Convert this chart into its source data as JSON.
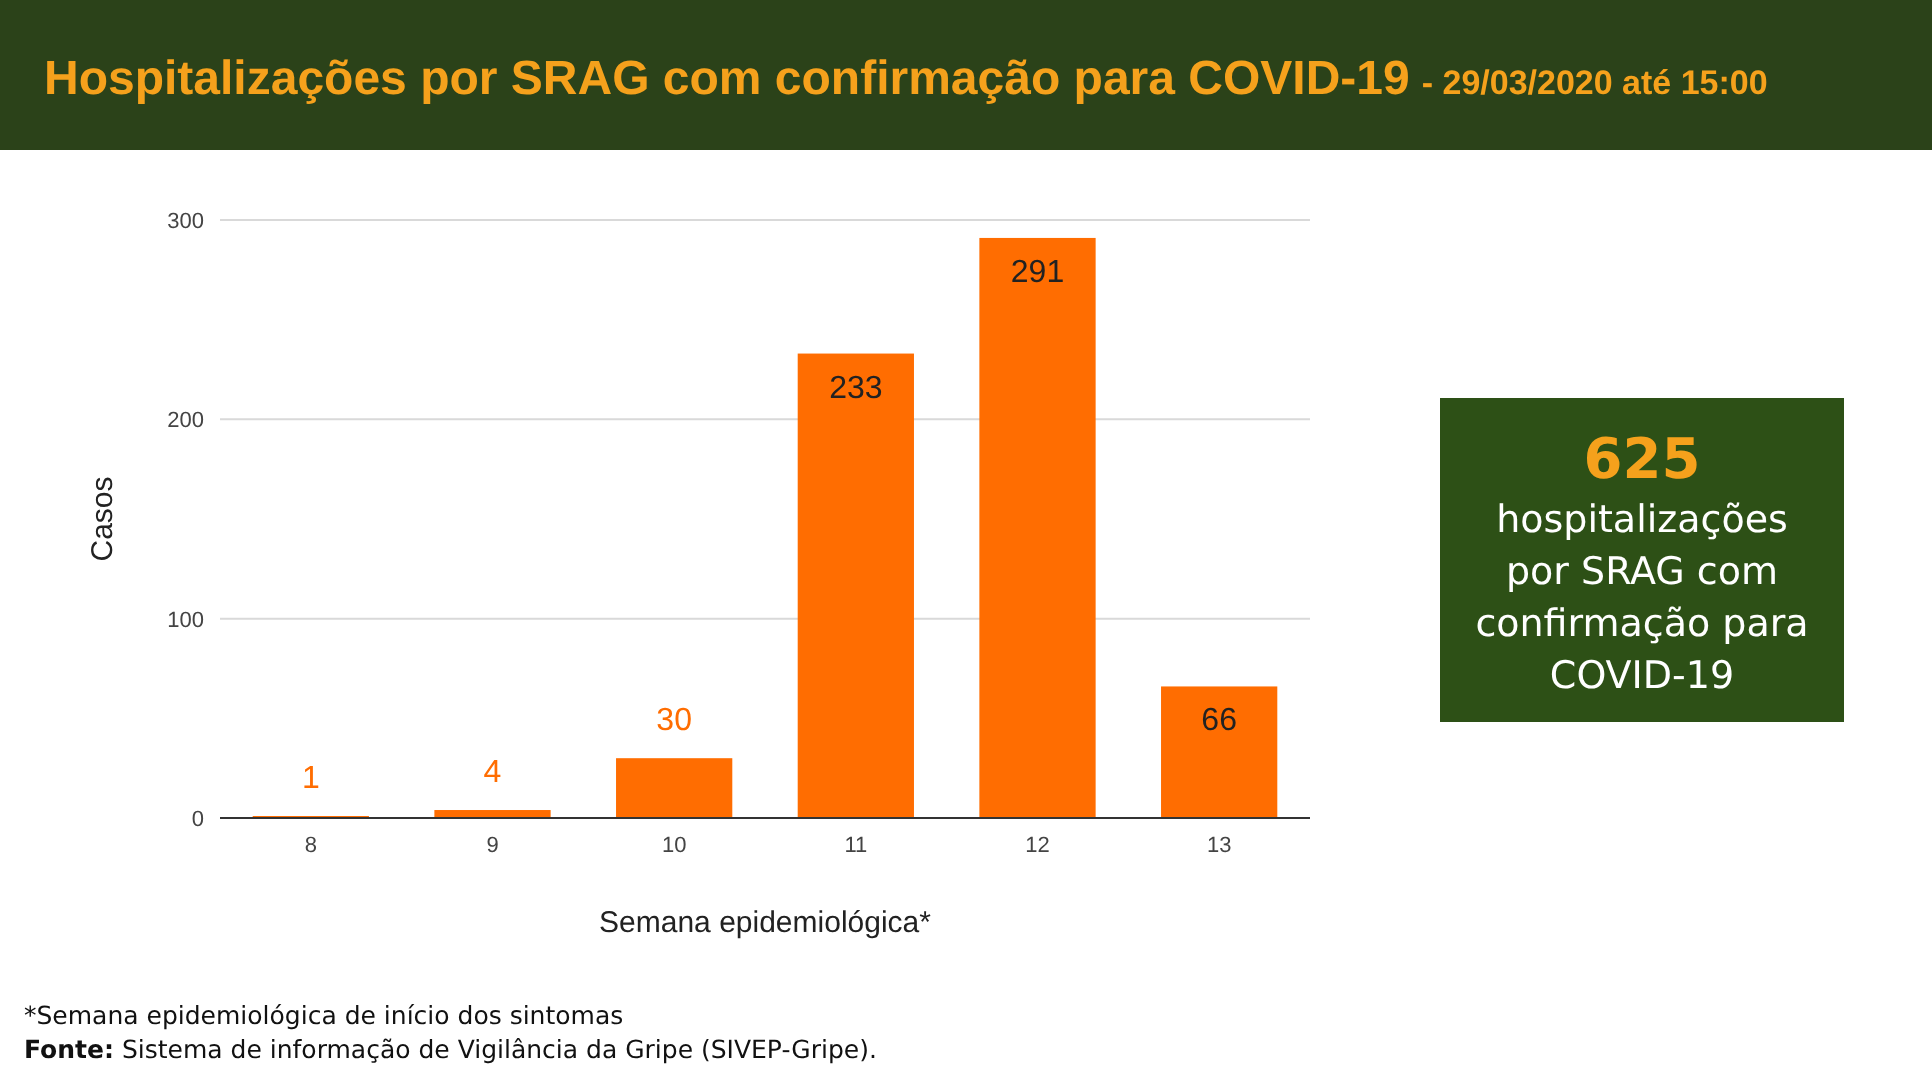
{
  "chart_data": {
    "type": "bar",
    "title": "Hospitalizações por SRAG com confirmação para COVID-19",
    "subtitle": "- 29/03/2020 até 15:00",
    "xlabel": "Semana epidemiológica*",
    "ylabel": "Casos",
    "categories": [
      "8",
      "9",
      "10",
      "11",
      "12",
      "13"
    ],
    "values": [
      1,
      4,
      30,
      233,
      291,
      66
    ],
    "color": "#ff6d01",
    "ylim": [
      0,
      300
    ],
    "yticks": [
      0,
      100,
      200,
      300
    ],
    "grid": "y",
    "data_labels": true,
    "annotations": [
      "625",
      "hospitalizações",
      "por SRAG com",
      "confirmação para",
      "COVID-19",
      "*Semana epidemiológica de início dos sintomas",
      "Fonte: Sistema de informação de Vigilância da Gripe (SIVEP-Gripe)."
    ]
  }
}
